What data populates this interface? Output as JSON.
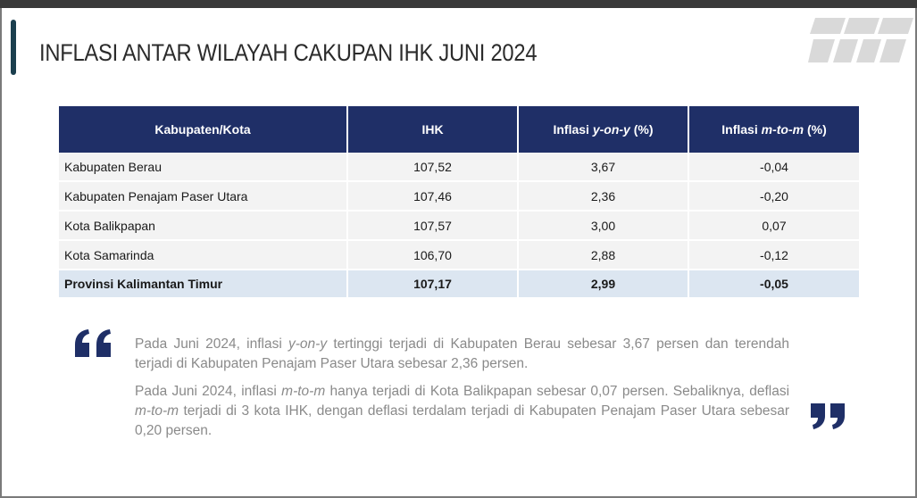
{
  "title": "INFLASI ANTAR WILAYAH CAKUPAN IHK JUNI 2024",
  "colors": {
    "header_bg": "#1f2f67",
    "accent": "#1b3f4e",
    "total_row_bg": "#dce6f1",
    "row_bg": "#f3f3f3"
  },
  "table": {
    "headers": {
      "region": "Kabupaten/Kota",
      "ihk": "IHK",
      "yoy_prefix": "Inflasi ",
      "yoy_term": "y-on-y",
      "yoy_suffix": " (%)",
      "mtm_prefix": "Inflasi ",
      "mtm_term": "m-to-m",
      "mtm_suffix": " (%)"
    },
    "rows": [
      {
        "name": "Kabupaten Berau",
        "ihk": "107,52",
        "yoy": "3,67",
        "mtm": "-0,04"
      },
      {
        "name": "Kabupaten Penajam Paser Utara",
        "ihk": "107,46",
        "yoy": "2,36",
        "mtm": "-0,20"
      },
      {
        "name": "Kota Balikpapan",
        "ihk": "107,57",
        "yoy": "3,00",
        "mtm": "0,07"
      },
      {
        "name": "Kota Samarinda",
        "ihk": "106,70",
        "yoy": "2,88",
        "mtm": "-0,12"
      }
    ],
    "total": {
      "name": "Provinsi Kalimantan Timur",
      "ihk": "107,17",
      "yoy": "2,99",
      "mtm": "-0,05"
    }
  },
  "paragraphs": {
    "p1_a": "Pada Juni 2024, inflasi ",
    "p1_term": "y-on-y",
    "p1_b": " tertinggi terjadi di Kabupaten Berau sebesar 3,67 persen dan terendah terjadi di Kabupaten Penajam Paser Utara sebesar 2,36 persen.",
    "p2_a": "Pada Juni 2024, inflasi ",
    "p2_term1": "m-to-m",
    "p2_b": " hanya terjadi di Kota Balikpapan sebesar 0,07 persen. Sebaliknya, deflasi ",
    "p2_term2": "m-to-m",
    "p2_c": " terjadi di 3 kota IHK, dengan deflasi terdalam terjadi di Kabupaten Penajam Paser Utara sebesar 0,20 persen."
  },
  "icons": {
    "logo": "bps-logo-icon",
    "quote_open": "quote-open-icon",
    "quote_close": "quote-close-icon"
  }
}
